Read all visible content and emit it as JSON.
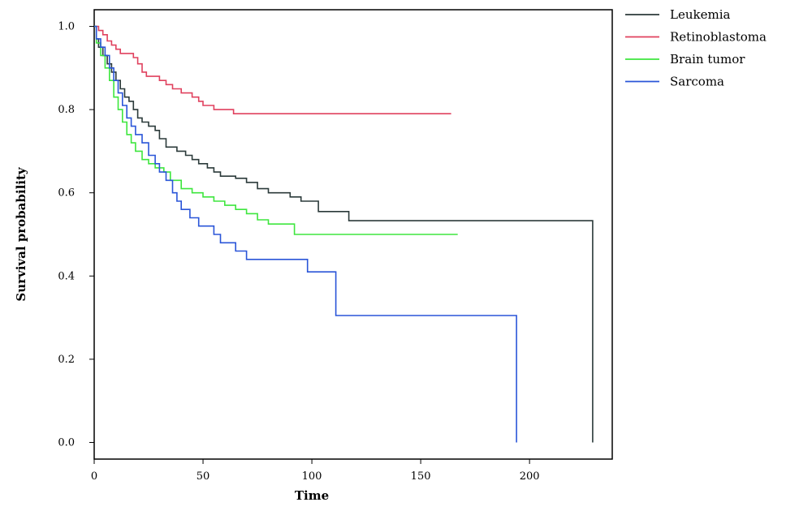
{
  "chart_data": {
    "type": "line",
    "step": true,
    "title": "",
    "xlabel": "Time",
    "ylabel": "Survival probability",
    "xlim": [
      0,
      238
    ],
    "ylim": [
      -0.04,
      1.04
    ],
    "xticks": [
      0,
      50,
      100,
      150,
      200
    ],
    "xtick_labels": [
      "0",
      "50",
      "100",
      "150",
      "200"
    ],
    "yticks": [
      0.0,
      0.2,
      0.4,
      0.6,
      0.8,
      1.0
    ],
    "ytick_labels": [
      "0.0",
      "0.2",
      "0.4",
      "0.6",
      "0.8",
      "1.0"
    ],
    "grid": false,
    "legend_position": "outside-top-right",
    "series": [
      {
        "name": "Leukemia",
        "color": "#2b3a3a",
        "points": [
          [
            0,
            1.0
          ],
          [
            1,
            0.97
          ],
          [
            2,
            0.95
          ],
          [
            4,
            0.93
          ],
          [
            6,
            0.91
          ],
          [
            8,
            0.89
          ],
          [
            10,
            0.87
          ],
          [
            12,
            0.85
          ],
          [
            14,
            0.83
          ],
          [
            16,
            0.82
          ],
          [
            18,
            0.8
          ],
          [
            20,
            0.78
          ],
          [
            22,
            0.77
          ],
          [
            25,
            0.76
          ],
          [
            28,
            0.75
          ],
          [
            30,
            0.73
          ],
          [
            33,
            0.71
          ],
          [
            38,
            0.7
          ],
          [
            42,
            0.69
          ],
          [
            45,
            0.68
          ],
          [
            48,
            0.67
          ],
          [
            52,
            0.66
          ],
          [
            55,
            0.65
          ],
          [
            58,
            0.64
          ],
          [
            65,
            0.635
          ],
          [
            70,
            0.625
          ],
          [
            75,
            0.61
          ],
          [
            80,
            0.6
          ],
          [
            90,
            0.59
          ],
          [
            95,
            0.58
          ],
          [
            103,
            0.555
          ],
          [
            117,
            0.533
          ],
          [
            229,
            0.533
          ],
          [
            229,
            0.0
          ]
        ]
      },
      {
        "name": "Retinoblastoma",
        "color": "#e0415e",
        "points": [
          [
            0,
            1.0
          ],
          [
            2,
            0.99
          ],
          [
            4,
            0.98
          ],
          [
            6,
            0.965
          ],
          [
            8,
            0.955
          ],
          [
            10,
            0.945
          ],
          [
            12,
            0.935
          ],
          [
            18,
            0.925
          ],
          [
            20,
            0.91
          ],
          [
            22,
            0.89
          ],
          [
            24,
            0.88
          ],
          [
            30,
            0.87
          ],
          [
            33,
            0.86
          ],
          [
            36,
            0.85
          ],
          [
            40,
            0.84
          ],
          [
            45,
            0.83
          ],
          [
            48,
            0.82
          ],
          [
            50,
            0.81
          ],
          [
            55,
            0.8
          ],
          [
            64,
            0.79
          ],
          [
            164,
            0.79
          ]
        ]
      },
      {
        "name": "Brain tumor",
        "color": "#3ee63e",
        "points": [
          [
            0,
            1.0
          ],
          [
            1,
            0.96
          ],
          [
            3,
            0.93
          ],
          [
            5,
            0.9
          ],
          [
            7,
            0.87
          ],
          [
            9,
            0.83
          ],
          [
            11,
            0.8
          ],
          [
            13,
            0.77
          ],
          [
            15,
            0.74
          ],
          [
            17,
            0.72
          ],
          [
            19,
            0.7
          ],
          [
            22,
            0.68
          ],
          [
            25,
            0.67
          ],
          [
            28,
            0.66
          ],
          [
            32,
            0.65
          ],
          [
            35,
            0.63
          ],
          [
            40,
            0.61
          ],
          [
            45,
            0.6
          ],
          [
            50,
            0.59
          ],
          [
            55,
            0.58
          ],
          [
            60,
            0.57
          ],
          [
            65,
            0.56
          ],
          [
            70,
            0.55
          ],
          [
            75,
            0.535
          ],
          [
            80,
            0.525
          ],
          [
            92,
            0.5
          ],
          [
            167,
            0.5
          ]
        ]
      },
      {
        "name": "Sarcoma",
        "color": "#2a55d8",
        "points": [
          [
            0,
            1.0
          ],
          [
            1,
            0.97
          ],
          [
            3,
            0.95
          ],
          [
            5,
            0.93
          ],
          [
            7,
            0.9
          ],
          [
            9,
            0.87
          ],
          [
            11,
            0.84
          ],
          [
            13,
            0.81
          ],
          [
            15,
            0.78
          ],
          [
            17,
            0.76
          ],
          [
            19,
            0.74
          ],
          [
            22,
            0.72
          ],
          [
            25,
            0.69
          ],
          [
            28,
            0.67
          ],
          [
            30,
            0.65
          ],
          [
            33,
            0.63
          ],
          [
            36,
            0.6
          ],
          [
            38,
            0.58
          ],
          [
            40,
            0.56
          ],
          [
            44,
            0.54
          ],
          [
            48,
            0.52
          ],
          [
            55,
            0.5
          ],
          [
            58,
            0.48
          ],
          [
            65,
            0.46
          ],
          [
            70,
            0.44
          ],
          [
            98,
            0.41
          ],
          [
            111,
            0.305
          ],
          [
            194,
            0.305
          ],
          [
            194,
            0.0
          ]
        ]
      }
    ]
  }
}
